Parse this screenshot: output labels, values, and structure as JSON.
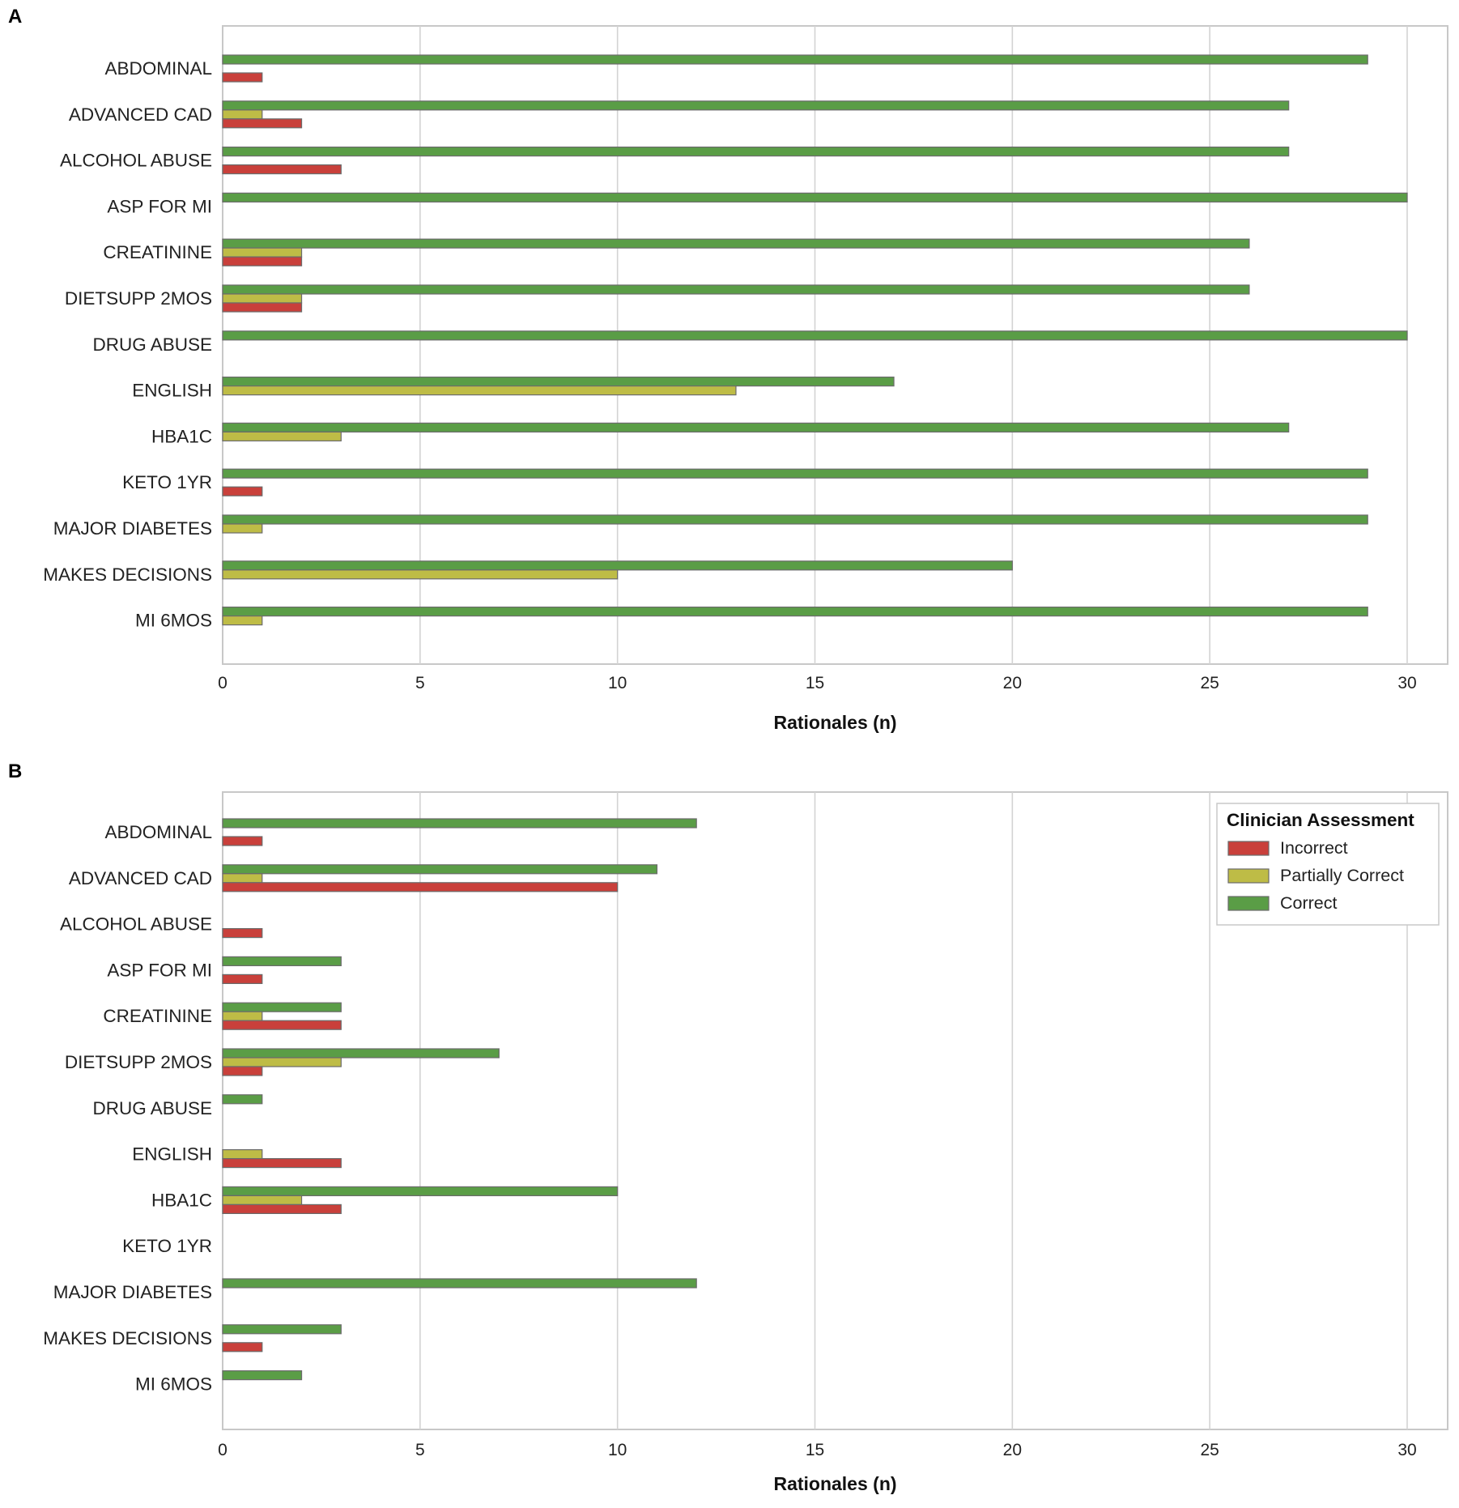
{
  "colors": {
    "Incorrect": "#c9403b",
    "Partially Correct": "#bebc46",
    "Correct": "#5a9d46",
    "bar_stroke": "#6b6b6b",
    "grid": "#d3d3d3",
    "frame": "#c8c8c8"
  },
  "legend": {
    "title": "Clinician Assessment",
    "entries": [
      "Incorrect",
      "Partially Correct",
      "Correct"
    ],
    "placement": "top-right of panel B"
  },
  "chart_data": [
    {
      "panel": "A",
      "type": "bar",
      "orientation": "horizontal",
      "xlabel": "Rationales (n)",
      "xlim": [
        0,
        31
      ],
      "xticks": [
        0,
        5,
        10,
        15,
        20,
        25,
        30
      ],
      "grid": "vertical",
      "categories": [
        "ABDOMINAL",
        "ADVANCED CAD",
        "ALCOHOL ABUSE",
        "ASP FOR MI",
        "CREATININE",
        "DIETSUPP 2MOS",
        "DRUG ABUSE",
        "ENGLISH",
        "HBA1C",
        "KETO 1YR",
        "MAJOR DIABETES",
        "MAKES DECISIONS",
        "MI 6MOS"
      ],
      "series": [
        {
          "name": "Correct",
          "values": [
            29,
            27,
            27,
            30,
            26,
            26,
            30,
            17,
            27,
            29,
            29,
            20,
            29
          ]
        },
        {
          "name": "Partially Correct",
          "values": [
            0,
            1,
            0,
            0,
            2,
            2,
            0,
            13,
            3,
            0,
            1,
            10,
            1
          ]
        },
        {
          "name": "Incorrect",
          "values": [
            1,
            2,
            3,
            0,
            2,
            2,
            0,
            0,
            0,
            1,
            0,
            0,
            0
          ]
        }
      ]
    },
    {
      "panel": "B",
      "type": "bar",
      "orientation": "horizontal",
      "xlabel": "Rationales (n)",
      "xlim": [
        0,
        31
      ],
      "xticks": [
        0,
        5,
        10,
        15,
        20,
        25,
        30
      ],
      "grid": "vertical",
      "categories": [
        "ABDOMINAL",
        "ADVANCED CAD",
        "ALCOHOL ABUSE",
        "ASP FOR MI",
        "CREATININE",
        "DIETSUPP 2MOS",
        "DRUG ABUSE",
        "ENGLISH",
        "HBA1C",
        "KETO 1YR",
        "MAJOR DIABETES",
        "MAKES DECISIONS",
        "MI 6MOS"
      ],
      "series": [
        {
          "name": "Correct",
          "values": [
            12,
            11,
            0,
            3,
            3,
            7,
            1,
            0,
            10,
            0,
            12,
            3,
            2
          ]
        },
        {
          "name": "Partially Correct",
          "values": [
            0,
            1,
            0,
            0,
            1,
            3,
            0,
            1,
            2,
            0,
            0,
            0,
            0
          ]
        },
        {
          "name": "Incorrect",
          "values": [
            1,
            10,
            1,
            1,
            3,
            1,
            0,
            3,
            3,
            0,
            0,
            1,
            0
          ]
        }
      ]
    }
  ]
}
